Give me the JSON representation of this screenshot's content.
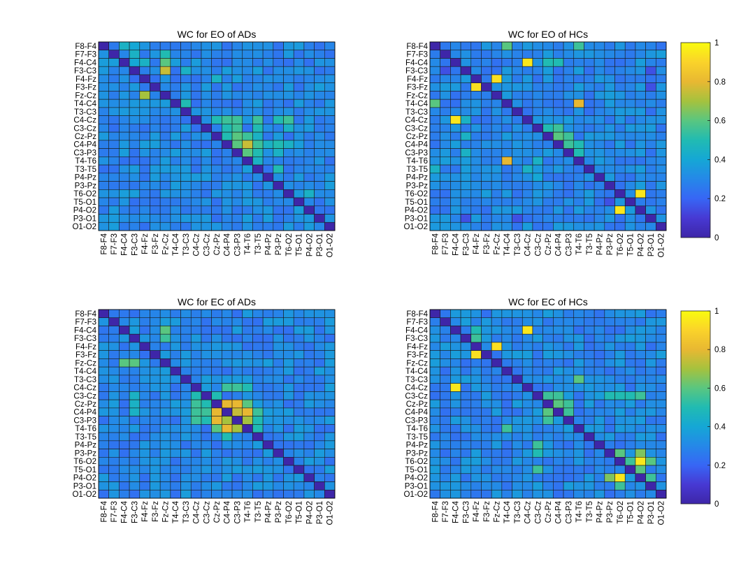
{
  "chart_data": [
    {
      "type": "heatmap",
      "title": "WC for EO of ADs",
      "channels": [
        "F8-F4",
        "F7-F3",
        "F4-C4",
        "F3-C3",
        "F4-Fz",
        "F3-Fz",
        "Fz-Cz",
        "T4-C4",
        "T3-C3",
        "C4-Cz",
        "C3-Cz",
        "Cz-Pz",
        "C4-P4",
        "C3-P3",
        "T4-T6",
        "T3-T5",
        "P4-Pz",
        "P3-Pz",
        "T6-O2",
        "T5-O1",
        "P4-O2",
        "P3-O1",
        "O1-O2"
      ],
      "clim": [
        0,
        1
      ],
      "colormap": "parula",
      "diagonal_value": 0,
      "baseline": 0.3,
      "cells": [
        [
          0,
          2,
          0.45
        ],
        [
          0,
          3,
          0.4
        ],
        [
          1,
          3,
          0.45
        ],
        [
          2,
          3,
          0.4
        ],
        [
          2,
          4,
          0.45
        ],
        [
          3,
          6,
          0.75
        ],
        [
          2,
          6,
          0.6
        ],
        [
          1,
          6,
          0.5
        ],
        [
          6,
          4,
          0.7
        ],
        [
          7,
          8,
          0.5
        ],
        [
          9,
          11,
          0.5
        ],
        [
          9,
          12,
          0.55
        ],
        [
          9,
          13,
          0.55
        ],
        [
          10,
          12,
          0.5
        ],
        [
          10,
          13,
          0.55
        ],
        [
          11,
          12,
          0.5
        ],
        [
          11,
          13,
          0.6
        ],
        [
          11,
          14,
          0.55
        ],
        [
          12,
          13,
          0.6
        ],
        [
          12,
          14,
          0.75
        ],
        [
          13,
          14,
          0.6
        ],
        [
          13,
          15,
          0.5
        ],
        [
          12,
          15,
          0.55
        ],
        [
          9,
          15,
          0.55
        ],
        [
          10,
          15,
          0.5
        ],
        [
          11,
          15,
          0.45
        ],
        [
          14,
          15,
          0.45
        ],
        [
          9,
          17,
          0.5
        ],
        [
          9,
          18,
          0.55
        ],
        [
          12,
          16,
          0.45
        ],
        [
          12,
          17,
          0.5
        ],
        [
          13,
          17,
          0.45
        ],
        [
          15,
          17,
          0.5
        ],
        [
          18,
          20,
          0.45
        ],
        [
          10,
          18,
          0.45
        ],
        [
          12,
          18,
          0.45
        ],
        [
          9,
          6,
          0.25
        ],
        [
          3,
          8,
          0.45
        ],
        [
          4,
          11,
          0.45
        ]
      ]
    },
    {
      "type": "heatmap",
      "title": "WC for EO of HCs",
      "channels": [
        "F8-F4",
        "F7-F3",
        "F4-C4",
        "F3-C3",
        "F4-Fz",
        "F3-Fz",
        "Fz-Cz",
        "T4-C4",
        "T3-C3",
        "C4-Cz",
        "C3-Cz",
        "Cz-Pz",
        "C4-P4",
        "C3-P3",
        "T4-T6",
        "T3-T5",
        "P4-Pz",
        "P3-Pz",
        "T6-O2",
        "T5-O1",
        "P4-O2",
        "P3-O1",
        "O1-O2"
      ],
      "clim": [
        0,
        1
      ],
      "colormap": "parula",
      "diagonal_value": 0,
      "baseline": 0.3,
      "cells": [
        [
          0,
          7,
          0.6
        ],
        [
          0,
          14,
          0.55
        ],
        [
          2,
          9,
          0.95
        ],
        [
          2,
          11,
          0.5
        ],
        [
          2,
          12,
          0.5
        ],
        [
          4,
          6,
          0.93
        ],
        [
          5,
          4,
          0.93
        ],
        [
          7,
          0,
          0.6
        ],
        [
          7,
          14,
          0.8
        ],
        [
          9,
          2,
          0.95
        ],
        [
          10,
          11,
          0.5
        ],
        [
          10,
          12,
          0.55
        ],
        [
          11,
          12,
          0.6
        ],
        [
          11,
          13,
          0.55
        ],
        [
          12,
          13,
          0.55
        ],
        [
          12,
          14,
          0.5
        ],
        [
          13,
          14,
          0.5
        ],
        [
          14,
          7,
          0.8
        ],
        [
          15,
          0,
          0.45
        ],
        [
          18,
          20,
          0.95
        ],
        [
          20,
          18,
          0.95
        ],
        [
          9,
          3,
          0.45
        ],
        [
          11,
          3,
          0.45
        ],
        [
          13,
          3,
          0.45
        ],
        [
          14,
          10,
          0.45
        ],
        [
          15,
          9,
          0.45
        ],
        [
          16,
          10,
          0.4
        ],
        [
          19,
          17,
          0.15
        ],
        [
          21,
          3,
          0.15
        ],
        [
          3,
          21,
          0.15
        ],
        [
          21,
          8,
          0.15
        ],
        [
          3,
          1,
          0.15
        ],
        [
          5,
          21,
          0.15
        ]
      ]
    },
    {
      "type": "heatmap",
      "title": "WC for EC of ADs",
      "channels": [
        "F8-F4",
        "F7-F3",
        "F4-C4",
        "F3-C3",
        "F4-Fz",
        "F3-Fz",
        "Fz-Cz",
        "T4-C4",
        "T3-C3",
        "C4-Cz",
        "C3-Cz",
        "Cz-Pz",
        "C4-P4",
        "C3-P3",
        "T4-T6",
        "T3-T5",
        "P4-Pz",
        "P3-Pz",
        "T6-O2",
        "T5-O1",
        "P4-O2",
        "P3-O1",
        "O1-O2"
      ],
      "clim": [
        0,
        1
      ],
      "colormap": "parula",
      "diagonal_value": 0,
      "baseline": 0.3,
      "cells": [
        [
          2,
          6,
          0.6
        ],
        [
          3,
          6,
          0.55
        ],
        [
          6,
          2,
          0.6
        ],
        [
          6,
          3,
          0.6
        ],
        [
          9,
          12,
          0.55
        ],
        [
          9,
          13,
          0.55
        ],
        [
          9,
          14,
          0.5
        ],
        [
          10,
          11,
          0.5
        ],
        [
          11,
          12,
          0.8
        ],
        [
          11,
          13,
          0.8
        ],
        [
          11,
          14,
          0.6
        ],
        [
          12,
          11,
          0.8
        ],
        [
          12,
          13,
          0.75
        ],
        [
          12,
          14,
          0.8
        ],
        [
          13,
          11,
          0.8
        ],
        [
          13,
          12,
          0.7
        ],
        [
          13,
          14,
          0.7
        ],
        [
          14,
          11,
          0.6
        ],
        [
          14,
          12,
          0.8
        ],
        [
          14,
          13,
          0.7
        ],
        [
          12,
          15,
          0.55
        ],
        [
          13,
          15,
          0.5
        ],
        [
          14,
          15,
          0.5
        ],
        [
          15,
          12,
          0.5
        ],
        [
          11,
          9,
          0.55
        ],
        [
          12,
          9,
          0.55
        ],
        [
          13,
          9,
          0.55
        ],
        [
          11,
          10,
          0.5
        ],
        [
          12,
          10,
          0.55
        ],
        [
          13,
          10,
          0.5
        ],
        [
          10,
          9,
          0.5
        ],
        [
          12,
          3,
          0.45
        ],
        [
          11,
          3,
          0.45
        ],
        [
          10,
          3,
          0.45
        ]
      ]
    },
    {
      "type": "heatmap",
      "title": "WC for EC of HCs",
      "channels": [
        "F8-F4",
        "F7-F3",
        "F4-C4",
        "F3-C3",
        "F4-Fz",
        "F3-Fz",
        "Fz-Cz",
        "T4-C4",
        "T3-C3",
        "C4-Cz",
        "C3-Cz",
        "Cz-Pz",
        "C4-P4",
        "C3-P3",
        "T4-T6",
        "T3-T5",
        "P4-Pz",
        "P3-Pz",
        "T6-O2",
        "T5-O1",
        "P4-O2",
        "P3-O1",
        "O1-O2"
      ],
      "clim": [
        0,
        1
      ],
      "colormap": "parula",
      "diagonal_value": 0,
      "baseline": 0.3,
      "cells": [
        [
          2,
          9,
          0.95
        ],
        [
          9,
          2,
          0.95
        ],
        [
          4,
          6,
          0.93
        ],
        [
          5,
          4,
          0.93
        ],
        [
          8,
          14,
          0.6
        ],
        [
          10,
          11,
          0.55
        ],
        [
          10,
          12,
          0.55
        ],
        [
          11,
          12,
          0.6
        ],
        [
          11,
          13,
          0.55
        ],
        [
          12,
          13,
          0.55
        ],
        [
          12,
          11,
          0.6
        ],
        [
          13,
          11,
          0.55
        ],
        [
          17,
          18,
          0.6
        ],
        [
          17,
          20,
          0.65
        ],
        [
          18,
          20,
          0.95
        ],
        [
          18,
          21,
          0.6
        ],
        [
          20,
          18,
          0.95
        ],
        [
          20,
          17,
          0.65
        ],
        [
          20,
          21,
          0.55
        ],
        [
          21,
          18,
          0.55
        ],
        [
          19,
          20,
          0.6
        ],
        [
          18,
          19,
          0.55
        ],
        [
          15,
          21,
          0.35
        ],
        [
          14,
          7,
          0.55
        ],
        [
          3,
          4,
          0.55
        ],
        [
          2,
          4,
          0.5
        ],
        [
          16,
          10,
          0.55
        ],
        [
          17,
          10,
          0.5
        ],
        [
          19,
          10,
          0.55
        ],
        [
          10,
          17,
          0.5
        ],
        [
          10,
          18,
          0.5
        ],
        [
          10,
          19,
          0.5
        ],
        [
          10,
          20,
          0.55
        ]
      ]
    }
  ],
  "colorbar": {
    "ticks": [
      "0",
      "0.2",
      "0.4",
      "0.6",
      "0.8",
      "1"
    ]
  }
}
